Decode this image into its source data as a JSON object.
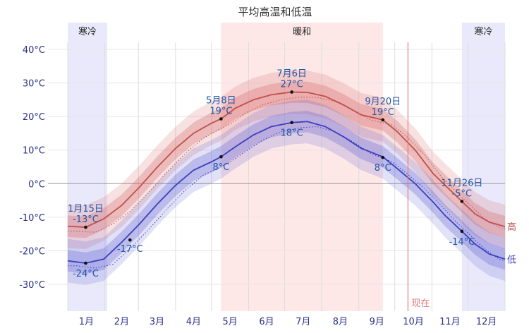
{
  "chart_data": {
    "type": "area",
    "title": "平均高温和低温",
    "y_unit": "°C",
    "ylim": [
      -38,
      48
    ],
    "y_ticks": [
      40,
      30,
      20,
      10,
      0,
      -10,
      -20,
      -30
    ],
    "y_tick_labels": [
      "40°C",
      "30°C",
      "20°C",
      "10°C",
      "0°C",
      "-10°C",
      "-20°C",
      "-30°C"
    ],
    "months": [
      "1月",
      "2月",
      "3月",
      "4月",
      "5月",
      "6月",
      "7月",
      "8月",
      "9月",
      "10月",
      "11月",
      "12月"
    ],
    "seasons": [
      {
        "label": "寒冷",
        "start_day": 0,
        "end_day": 33,
        "color": "#e9e9fb"
      },
      {
        "label": "暖和",
        "start_day": 128,
        "end_day": 263,
        "color": "#fde7e7"
      },
      {
        "label": "寒冷",
        "start_day": 329,
        "end_day": 365,
        "color": "#e9e9fb"
      }
    ],
    "now": {
      "label": "现在",
      "day": 284
    },
    "series": [
      {
        "name": "高",
        "color": "#c0504d",
        "days": [
          0,
          15,
          30,
          45,
          60,
          75,
          90,
          105,
          120,
          128,
          140,
          155,
          170,
          187,
          200,
          215,
          230,
          245,
          263,
          275,
          290,
          305,
          315,
          329,
          340,
          352,
          365
        ],
        "values": [
          -12.7,
          -13,
          -10.5,
          -6.5,
          -1,
          5,
          10.5,
          15,
          18,
          19.3,
          22.5,
          25,
          26.5,
          27.3,
          27.2,
          26,
          23.5,
          20.5,
          19,
          15.5,
          10,
          3,
          -0.5,
          -5.3,
          -9,
          -11.5,
          -12.8
        ]
      },
      {
        "name": "低",
        "color": "#3b3fbe",
        "days": [
          0,
          15,
          30,
          45,
          60,
          75,
          90,
          105,
          120,
          128,
          140,
          155,
          170,
          187,
          200,
          215,
          230,
          245,
          263,
          275,
          290,
          305,
          315,
          329,
          340,
          352,
          365
        ],
        "values": [
          -23,
          -23.7,
          -22.5,
          -17.5,
          -12,
          -6,
          -0.5,
          4,
          6.5,
          8,
          11,
          14.5,
          17,
          18.2,
          18.5,
          17,
          14,
          10.5,
          8,
          4.5,
          0,
          -5.5,
          -9.5,
          -14.2,
          -18,
          -21,
          -22.5
        ]
      }
    ],
    "annotations": [
      {
        "date": "1月15日",
        "value": "-13°C",
        "day": 15,
        "temp": -13,
        "pos": "above"
      },
      {
        "date": "",
        "value": "-24°C",
        "day": 15,
        "temp": -23.7,
        "pos": "below"
      },
      {
        "date": "",
        "value": "-17°C",
        "day": 52,
        "temp": -16.8,
        "pos": "below-right"
      },
      {
        "date": "5月8日",
        "value": "19°C",
        "day": 128,
        "temp": 19.3,
        "pos": "above"
      },
      {
        "date": "",
        "value": "8°C",
        "day": 128,
        "temp": 8,
        "pos": "below"
      },
      {
        "date": "7月6日",
        "value": "27°C",
        "day": 187,
        "temp": 27.3,
        "pos": "above"
      },
      {
        "date": "",
        "value": "18°C",
        "day": 187,
        "temp": 18.2,
        "pos": "below"
      },
      {
        "date": "9月20日",
        "value": "19°C",
        "day": 263,
        "temp": 19,
        "pos": "above"
      },
      {
        "date": "",
        "value": "8°C",
        "day": 263,
        "temp": 7.8,
        "pos": "below"
      },
      {
        "date": "11月26日",
        "value": "-5°C",
        "day": 329,
        "temp": -5.3,
        "pos": "above"
      },
      {
        "date": "",
        "value": "-14°C",
        "day": 329,
        "temp": -14.2,
        "pos": "below"
      }
    ]
  }
}
